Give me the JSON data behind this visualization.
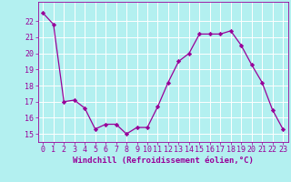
{
  "x": [
    0,
    1,
    2,
    3,
    4,
    5,
    6,
    7,
    8,
    9,
    10,
    11,
    12,
    13,
    14,
    15,
    16,
    17,
    18,
    19,
    20,
    21,
    22,
    23
  ],
  "y": [
    22.5,
    21.8,
    17.0,
    17.1,
    16.6,
    15.3,
    15.6,
    15.6,
    15.0,
    15.4,
    15.4,
    16.7,
    18.2,
    19.5,
    20.0,
    21.2,
    21.2,
    21.2,
    21.4,
    20.5,
    19.3,
    18.2,
    16.5,
    15.3
  ],
  "line_color": "#990099",
  "marker": "D",
  "marker_size": 2.2,
  "bg_color": "#b3f0f0",
  "grid_color": "#ffffff",
  "xlabel": "Windchill (Refroidissement éolien,°C)",
  "xlabel_color": "#990099",
  "tick_color": "#990099",
  "label_color": "#990099",
  "ylim": [
    14.5,
    23.2
  ],
  "xlim": [
    -0.5,
    23.5
  ],
  "yticks": [
    15,
    16,
    17,
    18,
    19,
    20,
    21,
    22
  ],
  "xticks": [
    0,
    1,
    2,
    3,
    4,
    5,
    6,
    7,
    8,
    9,
    10,
    11,
    12,
    13,
    14,
    15,
    16,
    17,
    18,
    19,
    20,
    21,
    22,
    23
  ],
  "tick_fontsize": 6.0,
  "xlabel_fontsize": 6.5
}
